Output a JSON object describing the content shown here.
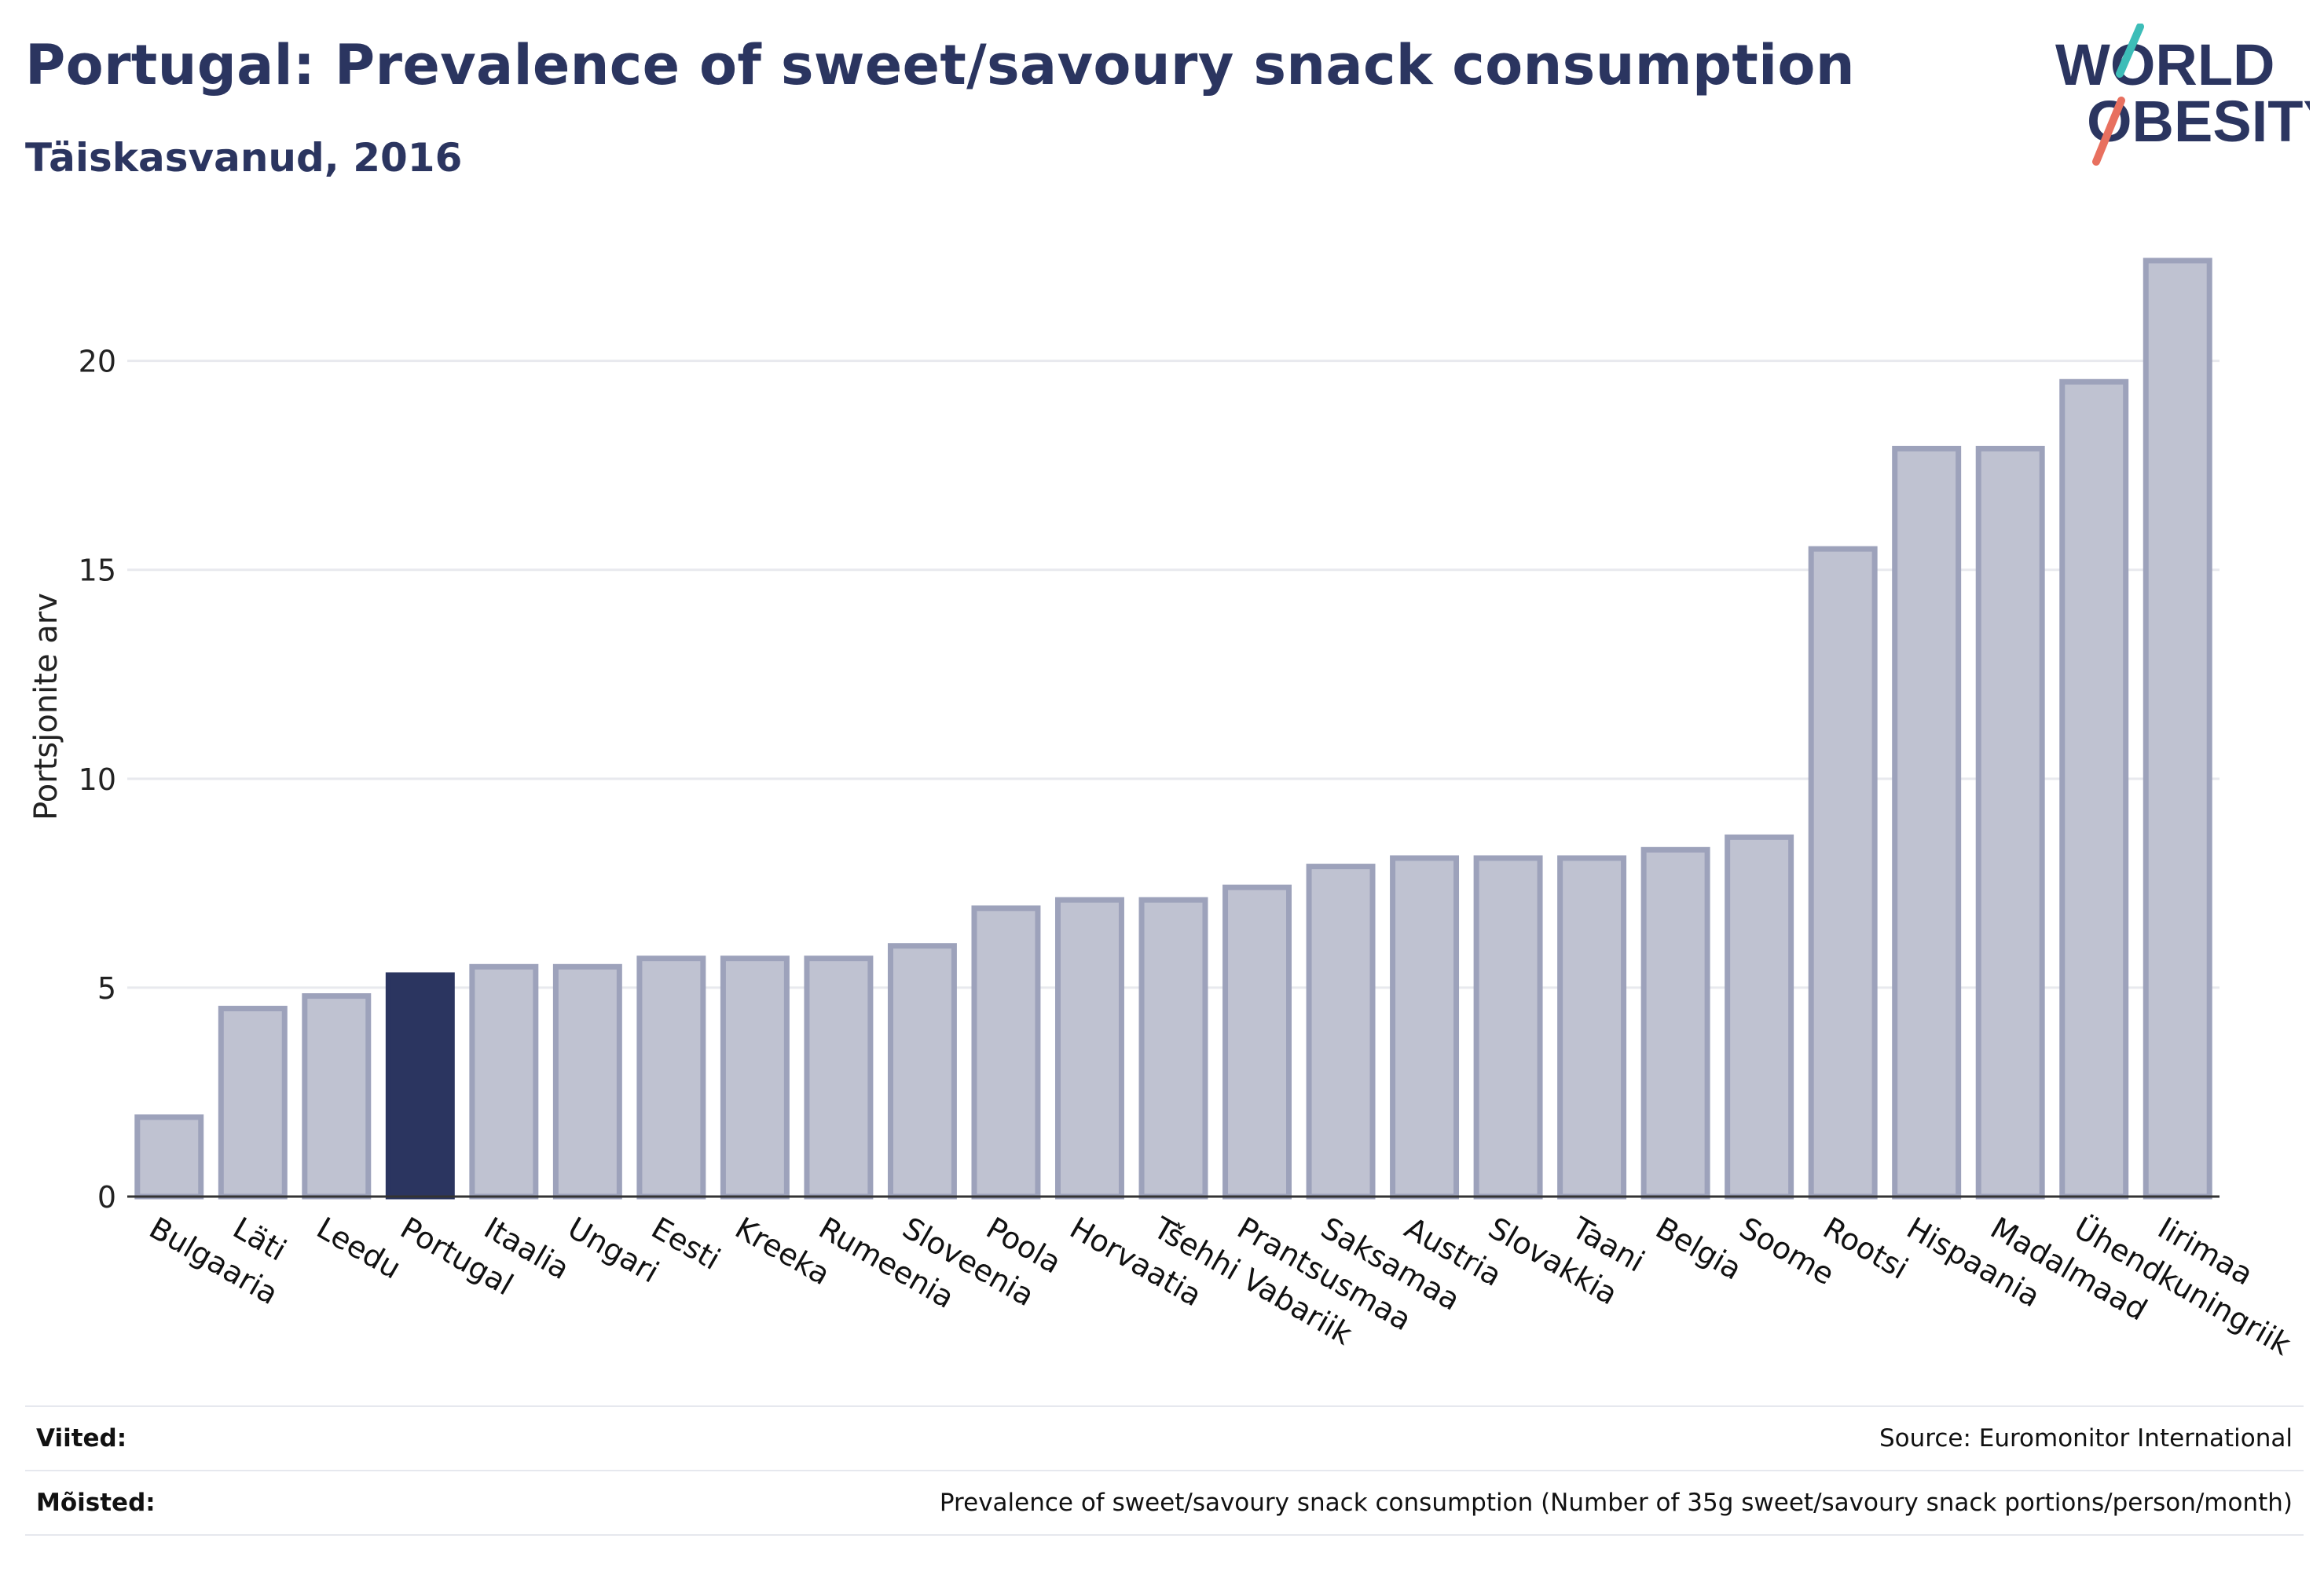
{
  "header": {
    "title": "Portugal: Prevalence of sweet/savoury snack consumption",
    "subtitle": "Täiskasvanud, 2016"
  },
  "logo": {
    "line1": "WORLD",
    "line2": "OBESITY",
    "colors": {
      "text": "#2b3560",
      "slash_top": "#3dbdb8",
      "slash_bottom": "#e8705f"
    }
  },
  "footer": {
    "references_label": "Viited:",
    "references_value": "Source: Euromonitor International",
    "definitions_label": "Mõisted:",
    "definitions_value": "Prevalence of sweet/savoury snack consumption (Number of 35g sweet/savoury snack portions/person/month)"
  },
  "chart_data": {
    "type": "bar",
    "title": "Portugal: Prevalence of sweet/savoury snack consumption",
    "subtitle": "Täiskasvanud, 2016",
    "xlabel": "",
    "ylabel": "Portsjonite arv",
    "ylim": [
      0,
      23
    ],
    "yticks": [
      0,
      5,
      10,
      15,
      20
    ],
    "grid": true,
    "highlight": "Portugal",
    "colors": {
      "bar": "#bfc2d1",
      "bar_border": "#9da2bb",
      "highlight": "#2b3560",
      "grid": "#e8e9ee",
      "axis": "#333333"
    },
    "categories": [
      "Bulgaaria",
      "Läti",
      "Leedu",
      "Portugal",
      "Itaalia",
      "Ungari",
      "Eesti",
      "Kreeka",
      "Rumeenia",
      "Sloveenia",
      "Poola",
      "Horvaatia",
      "Tšehhi Vabariik",
      "Prantsusmaa",
      "Saksamaa",
      "Austria",
      "Slovakkia",
      "Taani",
      "Belgia",
      "Soome",
      "Rootsi",
      "Hispaania",
      "Madalmaad",
      "Ühendkuningriik",
      "Iirimaa"
    ],
    "values": [
      1.9,
      4.5,
      4.8,
      5.3,
      5.5,
      5.5,
      5.7,
      5.7,
      5.7,
      6.0,
      6.9,
      7.1,
      7.1,
      7.4,
      7.9,
      8.1,
      8.1,
      8.1,
      8.3,
      8.6,
      15.5,
      17.9,
      17.9,
      19.5,
      22.4
    ]
  }
}
